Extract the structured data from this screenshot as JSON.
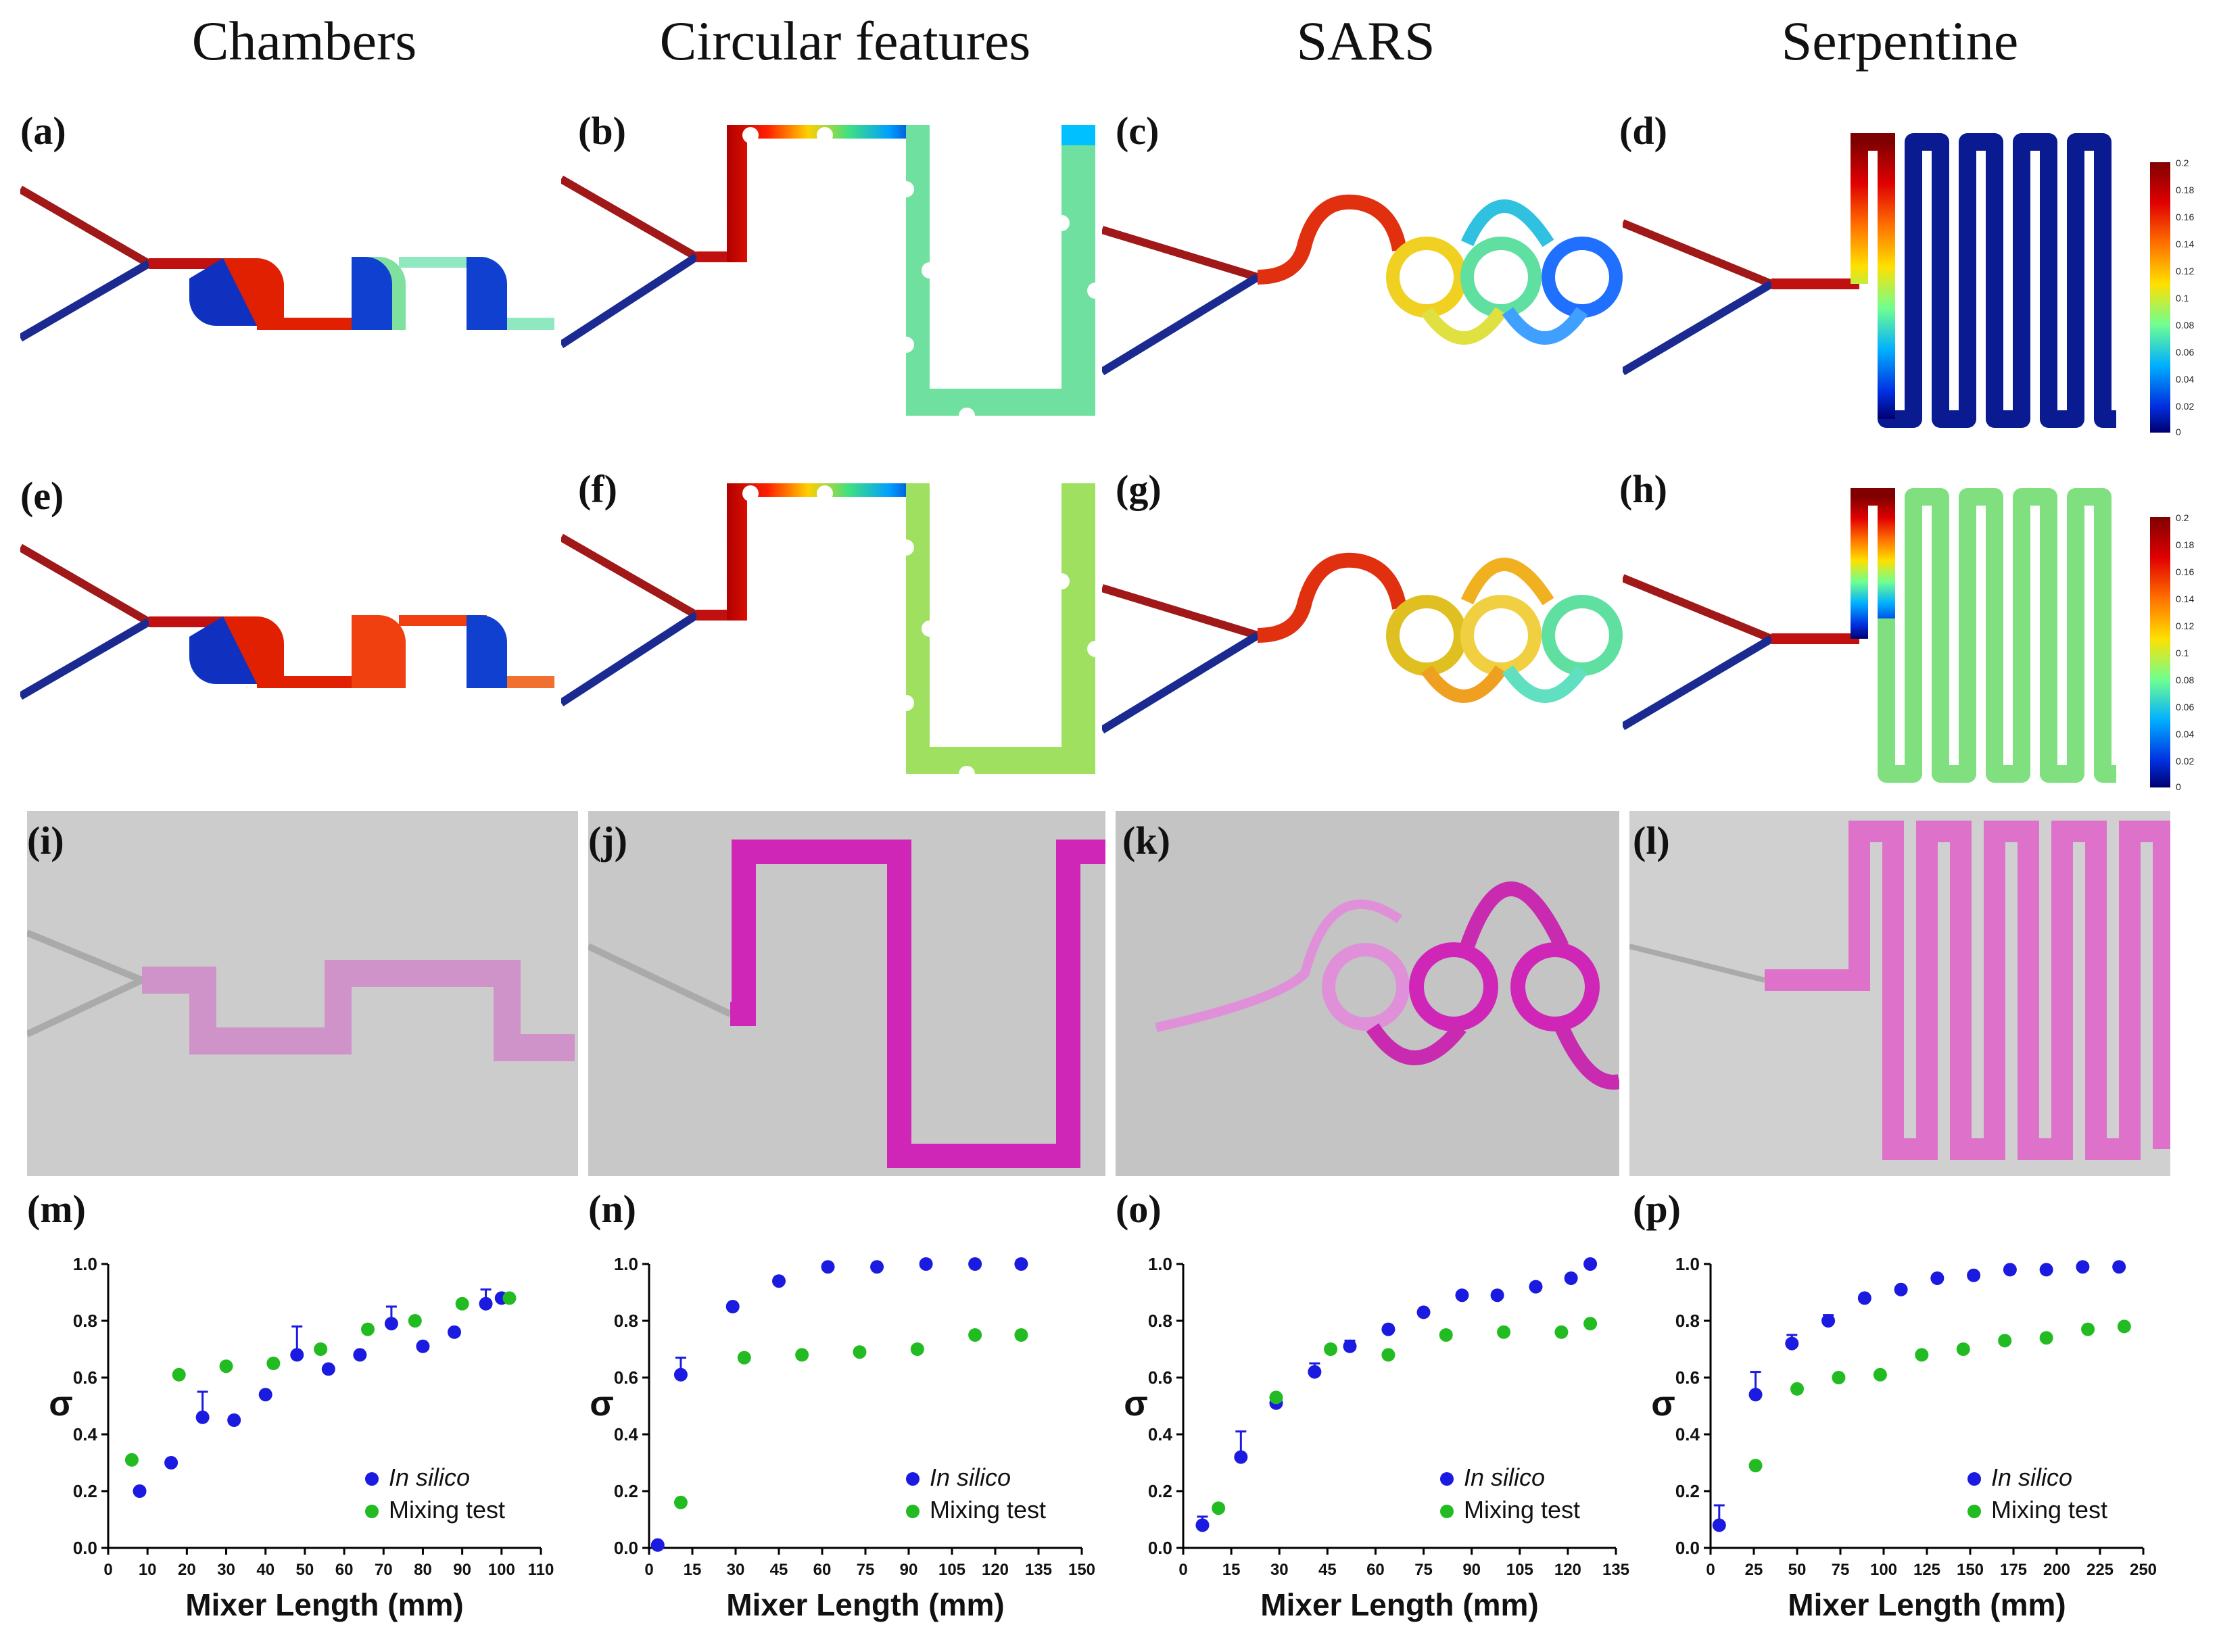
{
  "columns": [
    {
      "title": "Chambers"
    },
    {
      "title": "Circular features"
    },
    {
      "title": "SARS"
    },
    {
      "title": "Serpentine"
    }
  ],
  "panel_labels": [
    "(a)",
    "(b)",
    "(c)",
    "(d)",
    "(e)",
    "(f)",
    "(g)",
    "(h)",
    "(i)",
    "(j)",
    "(k)",
    "(l)",
    "(m)",
    "(n)",
    "(o)",
    "(p)"
  ],
  "colorbars": [
    {
      "ticks": [
        "0.2",
        "0.18",
        "0.16",
        "0.14",
        "0.12",
        "0.1",
        "0.08",
        "0.06",
        "0.04",
        "0.02",
        "0"
      ]
    },
    {
      "ticks": [
        "0.2",
        "0.18",
        "0.16",
        "0.14",
        "0.12",
        "0.1",
        "0.08",
        "0.06",
        "0.04",
        "0.02",
        "0"
      ]
    }
  ],
  "colors": {
    "in_silico": "#1a1ae0",
    "mixing_test": "#22bb22",
    "dye": "#d026b8"
  },
  "chart_data": [
    {
      "type": "scatter",
      "xlabel": "Mixer Length (mm)",
      "ylabel": "σ",
      "xlim": [
        0,
        110
      ],
      "ylim": [
        0,
        1.0
      ],
      "xticks": [
        "0",
        "10",
        "20",
        "30",
        "40",
        "50",
        "60",
        "70",
        "80",
        "90",
        "100",
        "110"
      ],
      "yticks": [
        "0.0",
        "0.2",
        "0.4",
        "0.6",
        "0.8",
        "1.0"
      ],
      "legend": [
        "In silico",
        "Mixing test"
      ],
      "legend_position": "bottom-right",
      "series": [
        {
          "name": "In silico",
          "x": [
            8,
            16,
            24,
            32,
            40,
            48,
            56,
            64,
            72,
            80,
            88,
            96,
            100
          ],
          "y": [
            0.2,
            0.3,
            0.46,
            0.45,
            0.54,
            0.68,
            0.63,
            0.68,
            0.79,
            0.71,
            0.76,
            0.86,
            0.88
          ],
          "err": [
            0,
            0,
            0.09,
            0,
            0,
            0.1,
            0,
            0,
            0.06,
            0,
            0,
            0.05,
            0
          ]
        },
        {
          "name": "Mixing test",
          "x": [
            6,
            18,
            30,
            42,
            54,
            66,
            78,
            90,
            102
          ],
          "y": [
            0.31,
            0.61,
            0.64,
            0.65,
            0.7,
            0.77,
            0.8,
            0.86,
            0.88
          ]
        }
      ]
    },
    {
      "type": "scatter",
      "xlabel": "Mixer Length (mm)",
      "ylabel": "σ",
      "xlim": [
        0,
        150
      ],
      "ylim": [
        0,
        1.0
      ],
      "xticks": [
        "0",
        "15",
        "30",
        "45",
        "60",
        "75",
        "90",
        "105",
        "120",
        "135",
        "150"
      ],
      "yticks": [
        "0.0",
        "0.2",
        "0.4",
        "0.6",
        "0.8",
        "1.0"
      ],
      "legend": [
        "In silico",
        "Mixing test"
      ],
      "legend_position": "bottom-right",
      "series": [
        {
          "name": "In silico",
          "x": [
            3,
            11,
            29,
            45,
            62,
            79,
            96,
            113,
            129
          ],
          "y": [
            0.01,
            0.61,
            0.85,
            0.94,
            0.99,
            0.99,
            1.0,
            1.0,
            1.0
          ],
          "err": [
            0,
            0.06,
            0,
            0,
            0,
            0,
            0,
            0,
            0
          ]
        },
        {
          "name": "Mixing test",
          "x": [
            11,
            33,
            53,
            73,
            93,
            113,
            129
          ],
          "y": [
            0.16,
            0.67,
            0.68,
            0.69,
            0.7,
            0.75,
            0.75
          ]
        }
      ]
    },
    {
      "type": "scatter",
      "xlabel": "Mixer Length (mm)",
      "ylabel": "σ",
      "xlim": [
        0,
        135
      ],
      "ylim": [
        0,
        1.0
      ],
      "xticks": [
        "0",
        "15",
        "30",
        "45",
        "60",
        "75",
        "90",
        "105",
        "120",
        "135"
      ],
      "yticks": [
        "0.0",
        "0.2",
        "0.4",
        "0.6",
        "0.8",
        "1.0"
      ],
      "legend": [
        "In silico",
        "Mixing test"
      ],
      "legend_position": "bottom-right",
      "series": [
        {
          "name": "In silico",
          "x": [
            6,
            18,
            29,
            41,
            52,
            64,
            75,
            87,
            98,
            110,
            121,
            127
          ],
          "y": [
            0.08,
            0.32,
            0.51,
            0.62,
            0.71,
            0.77,
            0.83,
            0.89,
            0.89,
            0.92,
            0.95,
            1.0
          ],
          "err": [
            0.03,
            0.09,
            0.03,
            0.03,
            0.02,
            0,
            0,
            0,
            0,
            0,
            0,
            0
          ]
        },
        {
          "name": "Mixing test",
          "x": [
            11,
            29,
            46,
            64,
            82,
            100,
            118,
            127
          ],
          "y": [
            0.14,
            0.53,
            0.7,
            0.68,
            0.75,
            0.76,
            0.76,
            0.79
          ]
        }
      ]
    },
    {
      "type": "scatter",
      "xlabel": "Mixer Length (mm)",
      "ylabel": "σ",
      "xlim": [
        0,
        250
      ],
      "ylim": [
        0,
        1.0
      ],
      "xticks": [
        "0",
        "25",
        "50",
        "75",
        "100",
        "125",
        "150",
        "175",
        "200",
        "225",
        "250"
      ],
      "yticks": [
        "0.0",
        "0.2",
        "0.4",
        "0.6",
        "0.8",
        "1.0"
      ],
      "legend": [
        "In silico",
        "Mixing test"
      ],
      "legend_position": "bottom-right",
      "series": [
        {
          "name": "In silico",
          "x": [
            5,
            26,
            47,
            68,
            89,
            110,
            131,
            152,
            173,
            194,
            215,
            236
          ],
          "y": [
            0.08,
            0.54,
            0.72,
            0.8,
            0.88,
            0.91,
            0.95,
            0.96,
            0.98,
            0.98,
            0.99,
            0.99
          ],
          "err": [
            0.07,
            0.08,
            0.03,
            0.02,
            0,
            0,
            0,
            0,
            0,
            0,
            0,
            0
          ]
        },
        {
          "name": "Mixing test",
          "x": [
            26,
            50,
            74,
            98,
            122,
            146,
            170,
            194,
            218,
            239
          ],
          "y": [
            0.29,
            0.56,
            0.6,
            0.61,
            0.68,
            0.7,
            0.73,
            0.74,
            0.77,
            0.78
          ]
        }
      ]
    }
  ]
}
